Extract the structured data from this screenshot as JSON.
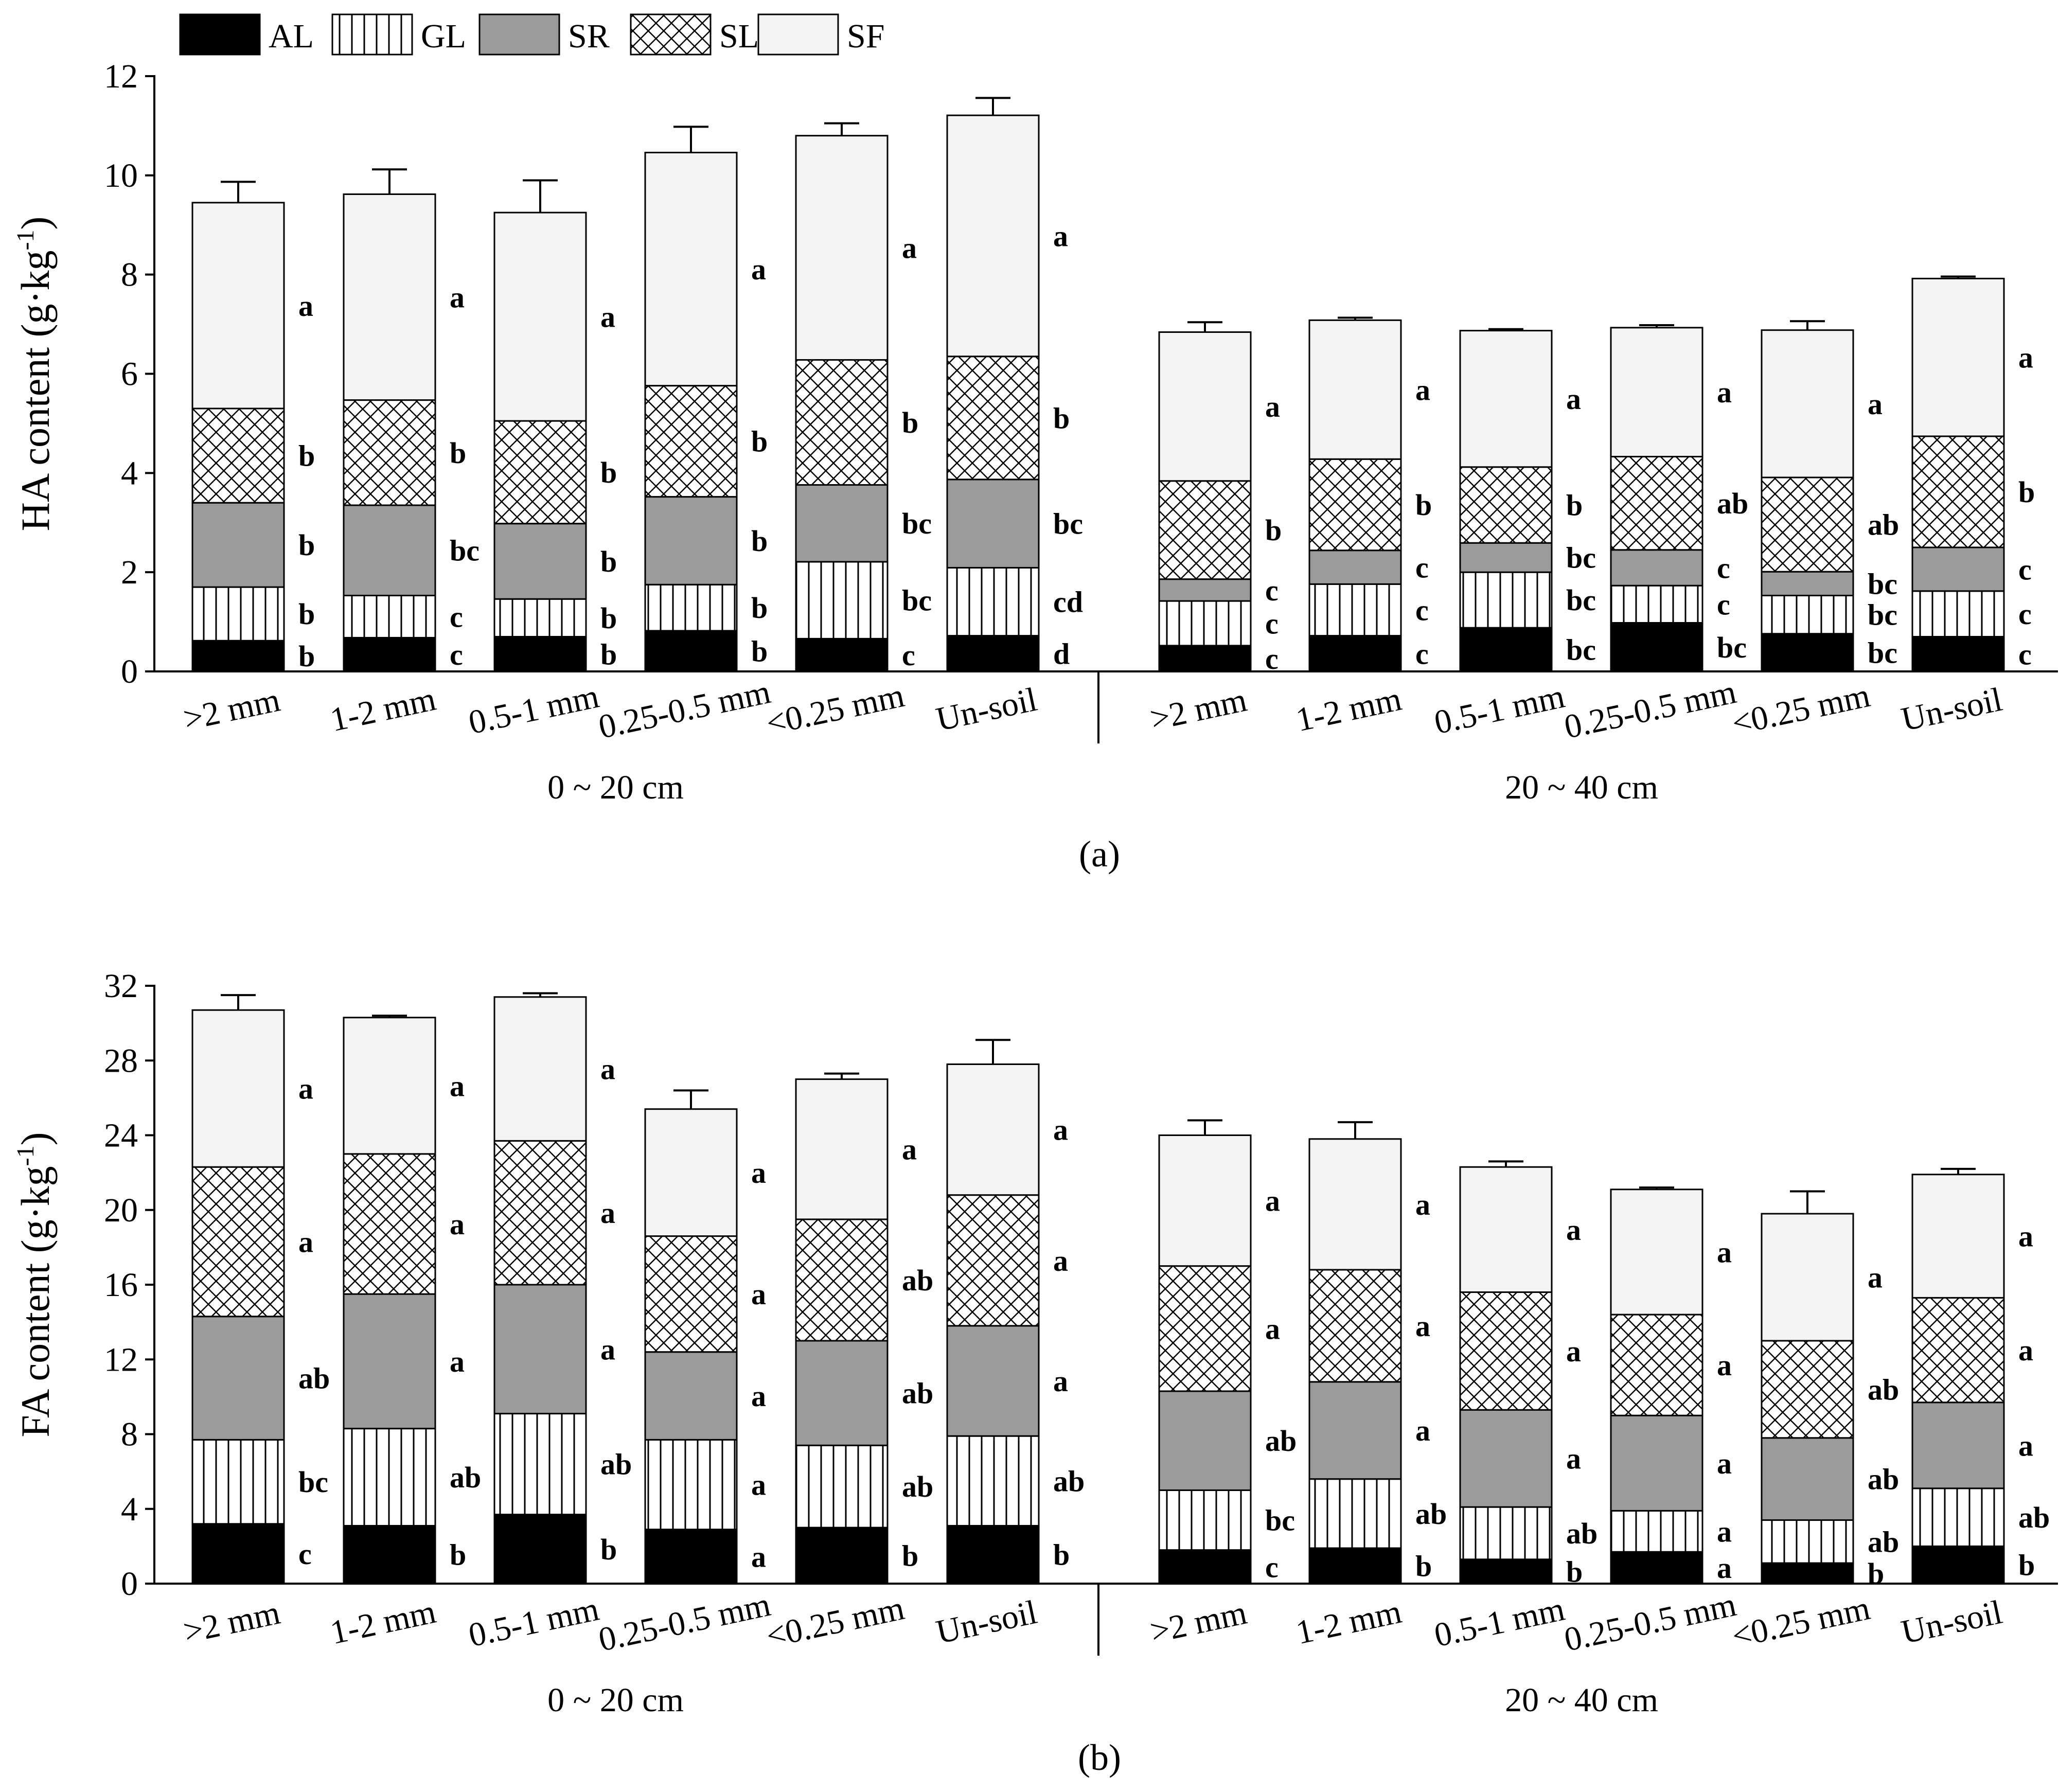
{
  "legend": [
    {
      "key": "AL",
      "label": "AL",
      "fill": "#000000",
      "pattern": "solid"
    },
    {
      "key": "GL",
      "label": "GL",
      "fill": "#ffffff",
      "pattern": "vlines"
    },
    {
      "key": "SR",
      "label": "SR",
      "fill": "#9b9b9b",
      "pattern": "solid"
    },
    {
      "key": "SL",
      "label": "SL",
      "fill": "#ffffff",
      "pattern": "crosshatch"
    },
    {
      "key": "SF",
      "label": "SF",
      "fill": "#f3f3f3",
      "pattern": "solid"
    }
  ],
  "chart_data": [
    {
      "type": "bar",
      "stacked": true,
      "panel": "(a)",
      "ylabel": "HA content (g·kg⁻¹)",
      "ylabel_base": "HA content (g·kg",
      "ylabel_sup": "-1",
      "ylabel_end": ")",
      "ylim": [
        0,
        12
      ],
      "yticks": [
        0,
        2,
        4,
        6,
        8,
        10,
        12
      ],
      "groups": [
        {
          "label": "0 ~ 20 cm",
          "categories": [
            ">2 mm",
            "1-2 mm",
            "0.5-1 mm",
            "0.25-0.5 mm",
            "<0.25 mm",
            "Un-soil"
          ]
        },
        {
          "label": "20 ~ 40 cm",
          "categories": [
            ">2 mm",
            "1-2 mm",
            "0.5-1 mm",
            "0.25-0.5 mm",
            "<0.25 mm",
            "Un-soil"
          ]
        }
      ],
      "series": [
        {
          "name": "AL",
          "values": [
            0.62,
            0.68,
            0.7,
            0.82,
            0.66,
            0.72,
            0.52,
            0.72,
            0.88,
            0.98,
            0.76,
            0.7
          ],
          "err": [
            0.22,
            0.12,
            0.03,
            0.03,
            0.06,
            0.03,
            0.15,
            0.12,
            0.38,
            0.42,
            0.42,
            0.2
          ],
          "sig": [
            "b",
            "c",
            "b",
            "b",
            "c",
            "d",
            "c",
            "c",
            "bc",
            "bc",
            "bc",
            "c"
          ]
        },
        {
          "name": "GL",
          "values": [
            1.08,
            0.85,
            0.76,
            0.93,
            1.55,
            1.37,
            0.9,
            1.04,
            1.12,
            0.75,
            0.77,
            0.92
          ],
          "err": [
            0.08,
            0.18,
            0.03,
            0.03,
            0.22,
            0.03,
            0.27,
            0.15,
            0.22,
            0.08,
            0.15,
            0.08
          ],
          "sig": [
            "b",
            "c",
            "b",
            "b",
            "bc",
            "cd",
            "c",
            "c",
            "bc",
            "c",
            "bc",
            "c"
          ]
        },
        {
          "name": "SR",
          "values": [
            1.7,
            1.82,
            1.52,
            1.77,
            1.55,
            1.78,
            0.44,
            0.68,
            0.59,
            0.72,
            0.48,
            0.88
          ],
          "err": [
            0.52,
            0.45,
            0.55,
            0.55,
            0.6,
            0.22,
            0.05,
            0.05,
            0.08,
            0.18,
            0.04,
            0.08
          ],
          "sig": [
            "b",
            "bc",
            "b",
            "b",
            "bc",
            "bc",
            "c",
            "c",
            "bc",
            "c",
            "bc",
            "c"
          ]
        },
        {
          "name": "SL",
          "values": [
            1.9,
            2.12,
            2.07,
            2.24,
            2.52,
            2.48,
            1.98,
            1.84,
            1.53,
            1.88,
            1.9,
            2.24
          ],
          "err": [
            0.42,
            0.28,
            0.07,
            0.28,
            0.1,
            0.12,
            0.03,
            0.15,
            0.08,
            0.28,
            0.32,
            0.08
          ],
          "sig": [
            "b",
            "b",
            "b",
            "b",
            "b",
            "b",
            "b",
            "b",
            "b",
            "ab",
            "ab",
            "b"
          ]
        },
        {
          "name": "SF",
          "values": [
            4.15,
            4.15,
            4.2,
            4.7,
            4.52,
            4.86,
            3.0,
            2.8,
            2.75,
            2.6,
            2.97,
            3.18
          ],
          "err": [
            0.42,
            0.5,
            0.65,
            0.52,
            0.25,
            0.35,
            0.2,
            0.05,
            0.03,
            0.05,
            0.18,
            0.04
          ],
          "sig": [
            "a",
            "a",
            "a",
            "a",
            "a",
            "a",
            "a",
            "a",
            "a",
            "a",
            "a",
            "a"
          ]
        }
      ]
    },
    {
      "type": "bar",
      "stacked": true,
      "panel": "(b)",
      "ylabel": "FA content (g·kg⁻¹)",
      "ylabel_base": "FA content (g·kg",
      "ylabel_sup": "-1",
      "ylabel_end": ")",
      "ylim": [
        0,
        32
      ],
      "yticks": [
        0,
        4,
        8,
        12,
        16,
        20,
        24,
        28,
        32
      ],
      "groups": [
        {
          "label": "0 ~ 20 cm",
          "categories": [
            ">2 mm",
            "1-2 mm",
            "0.5-1 mm",
            "0.25-0.5 mm",
            "<0.25 mm",
            "Un-soil"
          ]
        },
        {
          "label": "20 ~ 40 cm",
          "categories": [
            ">2 mm",
            "1-2 mm",
            "0.5-1 mm",
            "0.25-0.5 mm",
            "<0.25 mm",
            "Un-soil"
          ]
        }
      ],
      "series": [
        {
          "name": "AL",
          "values": [
            3.2,
            3.1,
            3.7,
            2.9,
            3.0,
            3.1,
            1.8,
            1.9,
            1.3,
            1.7,
            1.1,
            2.0
          ],
          "err": [
            0.05,
            0.5,
            0.45,
            0.7,
            0.9,
            0.15,
            0.1,
            0.25,
            0.45,
            0.2,
            0.4,
            0.05
          ],
          "sig": [
            "c",
            "b",
            "b",
            "a",
            "b",
            "b",
            "c",
            "b",
            "b",
            "a",
            "b",
            "b"
          ]
        },
        {
          "name": "GL",
          "values": [
            4.5,
            5.2,
            5.4,
            4.8,
            4.4,
            4.8,
            3.2,
            3.7,
            2.8,
            2.2,
            2.3,
            3.1
          ],
          "err": [
            0.2,
            0.7,
            1.0,
            1.9,
            0.8,
            0.25,
            0.3,
            0.3,
            0.7,
            0.1,
            0.7,
            0.05
          ],
          "sig": [
            "bc",
            "ab",
            "ab",
            "a",
            "ab",
            "ab",
            "bc",
            "ab",
            "ab",
            "a",
            "ab",
            "ab"
          ]
        },
        {
          "name": "SR",
          "values": [
            6.6,
            7.2,
            6.9,
            4.7,
            5.6,
            5.9,
            5.3,
            5.2,
            5.2,
            5.1,
            4.4,
            4.6
          ],
          "err": [
            1.1,
            0.9,
            0.8,
            1.1,
            1.9,
            0.4,
            0.5,
            0.5,
            0.3,
            0.1,
            0.1,
            0.5
          ],
          "sig": [
            "ab",
            "a",
            "a",
            "a",
            "ab",
            "a",
            "ab",
            "a",
            "a",
            "a",
            "ab",
            "a"
          ]
        },
        {
          "name": "SL",
          "values": [
            8.0,
            7.5,
            7.7,
            6.2,
            6.5,
            7.0,
            6.7,
            6.0,
            6.3,
            5.4,
            5.2,
            5.6
          ],
          "err": [
            0.5,
            0.7,
            0.8,
            0.2,
            0.9,
            0.4,
            0.4,
            0.7,
            0.6,
            0.4,
            0.1,
            0.2
          ],
          "sig": [
            "a",
            "a",
            "a",
            "a",
            "ab",
            "a",
            "a",
            "a",
            "a",
            "a",
            "ab",
            "a"
          ]
        },
        {
          "name": "SF",
          "values": [
            8.4,
            7.3,
            7.7,
            6.8,
            7.5,
            7.0,
            7.0,
            7.0,
            6.7,
            6.7,
            6.8,
            6.6
          ],
          "err": [
            0.8,
            0.1,
            0.2,
            1.0,
            0.3,
            1.3,
            0.8,
            0.9,
            0.3,
            0.1,
            1.2,
            0.3
          ],
          "sig": [
            "a",
            "a",
            "a",
            "a",
            "a",
            "a",
            "a",
            "a",
            "a",
            "a",
            "a",
            "a"
          ]
        }
      ]
    }
  ]
}
